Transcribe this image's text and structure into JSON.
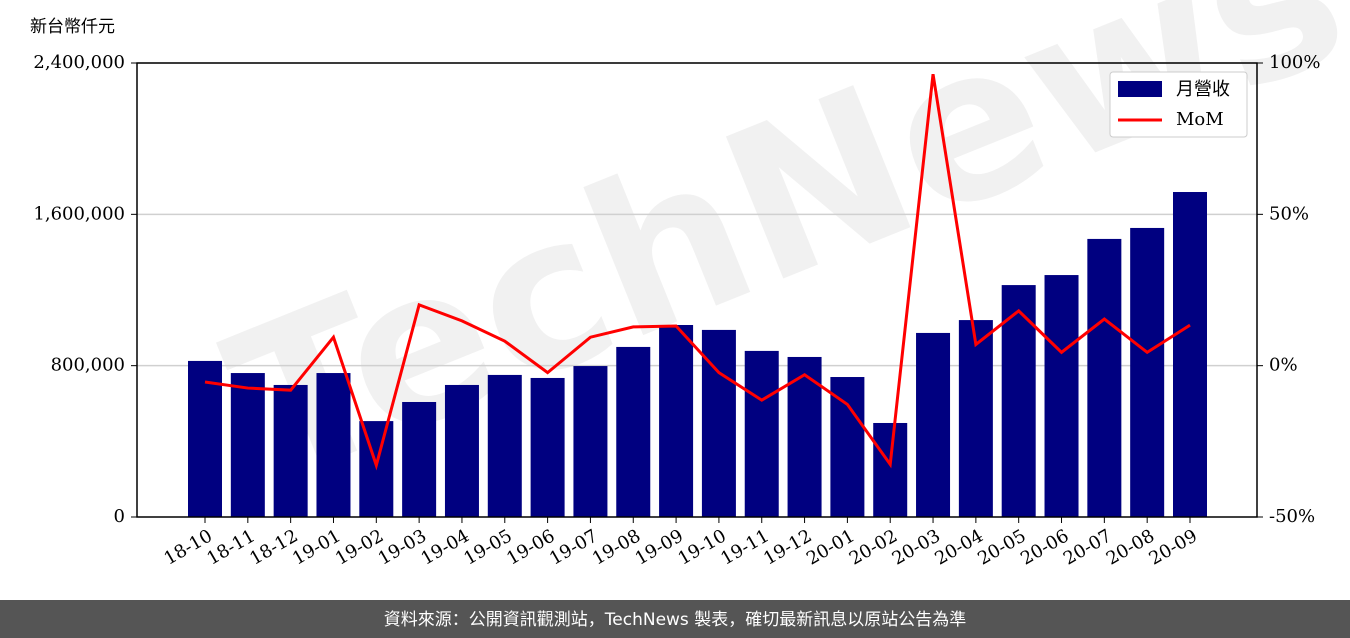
{
  "chart_data": {
    "type": "bar_line",
    "y_label": "新台幣仟元",
    "watermark": "TechNews",
    "footer": "資料來源：公開資訊觀測站，TechNews 製表，確切最新訊息以原站公告為準",
    "categories": [
      "18-10",
      "18-11",
      "18-12",
      "19-01",
      "19-02",
      "19-03",
      "19-04",
      "19-05",
      "19-06",
      "19-07",
      "19-08",
      "19-09",
      "19-10",
      "19-11",
      "19-12",
      "20-01",
      "20-02",
      "20-03",
      "20-04",
      "20-05",
      "20-06",
      "20-07",
      "20-08",
      "20-09"
    ],
    "series": [
      {
        "name": "月營收",
        "color": "#000080",
        "values": [
          825000,
          761000,
          698000,
          761000,
          507000,
          608000,
          698000,
          751000,
          735000,
          798000,
          899000,
          1015000,
          989000,
          878000,
          846000,
          740000,
          497000,
          973000,
          1041000,
          1226000,
          1279000,
          1470000,
          1528000,
          1718000
        ]
      },
      {
        "name": "MoM",
        "color": "#ff0000",
        "axis": "y2",
        "values": [
          -5.4,
          -7.4,
          -8.1,
          9.4,
          -32.9,
          20.1,
          14.8,
          8.1,
          -2.3,
          9.4,
          12.8,
          13.1,
          -2.3,
          -11.4,
          -3,
          -12.8,
          -32.6,
          96.3,
          7,
          18.1,
          4.4,
          15.4,
          4.4,
          13.4
        ]
      }
    ],
    "ylim": [
      0,
      2400000
    ],
    "yticks": [
      0,
      {
        "value": 800000,
        "label": "800,000"
      },
      {
        "value": 1600000,
        "label": "1,600,000"
      },
      {
        "value": 2400000,
        "label": "2,400,000"
      }
    ],
    "y2lim": [
      -50,
      100
    ],
    "y2ticks": [
      {
        "value": -50,
        "label": "-50%"
      },
      {
        "value": 0,
        "label": "0%"
      },
      {
        "value": 50,
        "label": "50%"
      },
      {
        "value": 100,
        "label": "100%"
      }
    ],
    "grid": true,
    "legend": "upper right"
  }
}
